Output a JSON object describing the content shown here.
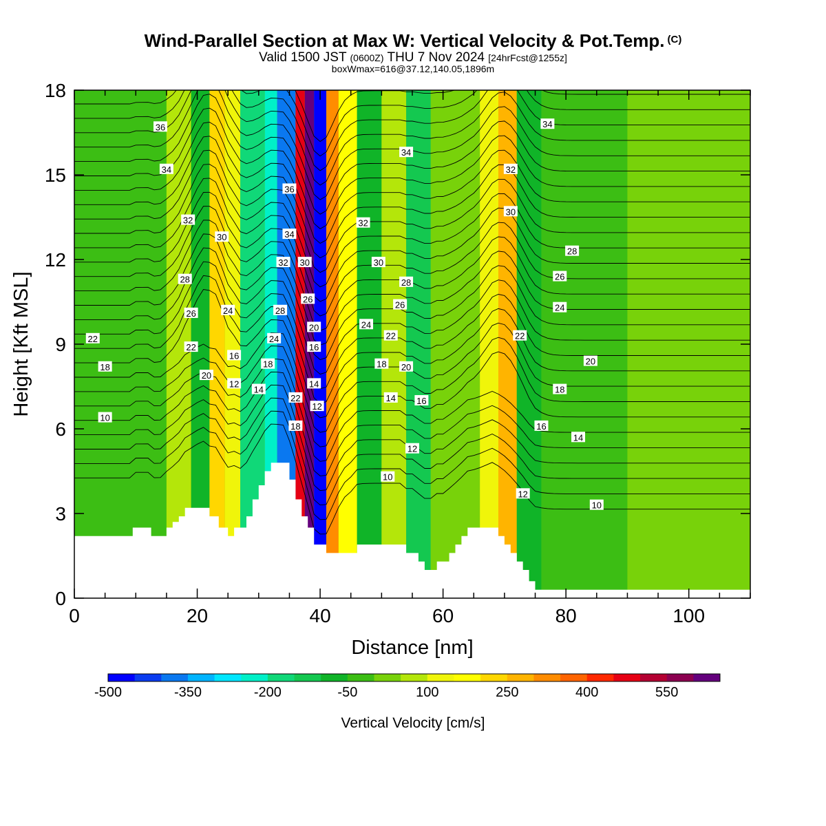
{
  "header": {
    "title": "Wind-Parallel Section at Max W: Vertical Velocity & Pot.Temp.",
    "title_mark": "(C)",
    "valid_prefix": "Valid 1500 JST",
    "valid_utc": "(0600Z)",
    "valid_date": "THU 7 Nov 2024",
    "forecast": "[24hrFcst@1255z]",
    "box_max": "boxWmax=616@37.12,140.05,1896m"
  },
  "chart_data": {
    "type": "heatmap",
    "xlabel": "Distance [nm]",
    "ylabel": "Height [Kft MSL]",
    "xlim": [
      0,
      110
    ],
    "ylim": [
      0,
      18
    ],
    "x_ticks": [
      0,
      20,
      40,
      60,
      80,
      100
    ],
    "y_ticks": [
      0,
      3,
      6,
      9,
      12,
      15,
      18
    ],
    "colorbar": {
      "label": "Vertical Velocity [cm/s]",
      "tick_labels": [
        "-500",
        "-350",
        "-200",
        "-50",
        "100",
        "250",
        "400",
        "550"
      ],
      "tick_values": [
        -500,
        -350,
        -200,
        -50,
        100,
        250,
        400,
        550
      ],
      "bin_edges": [
        -500,
        -450,
        -400,
        -350,
        -300,
        -250,
        -200,
        -150,
        -100,
        -50,
        0,
        50,
        100,
        150,
        200,
        250,
        300,
        350,
        400,
        450,
        500,
        550,
        600,
        650
      ],
      "colors": [
        "#0000ff",
        "#0a3cf0",
        "#0a78f0",
        "#00b4ff",
        "#00e6ff",
        "#00f0c8",
        "#10d878",
        "#14c850",
        "#10b428",
        "#3cbe14",
        "#78d20a",
        "#b4e60a",
        "#f0f50a",
        "#ffff00",
        "#ffd700",
        "#ffb400",
        "#ff8c00",
        "#ff6400",
        "#ff2800",
        "#e60014",
        "#b40032",
        "#8c0050",
        "#64007d"
      ]
    },
    "vertical_velocity_bands": [
      {
        "x_left": 0,
        "x_right": 15,
        "w": -40
      },
      {
        "x_left": 15,
        "x_right": 19,
        "w": 60
      },
      {
        "x_left": 19,
        "x_right": 22,
        "w": -100
      },
      {
        "x_left": 22,
        "x_right": 24.5,
        "w": 230
      },
      {
        "x_left": 24.5,
        "x_right": 27,
        "w": 130
      },
      {
        "x_left": 27,
        "x_right": 31,
        "w": -160
      },
      {
        "x_left": 31,
        "x_right": 33,
        "w": -250
      },
      {
        "x_left": 33,
        "x_right": 36,
        "w": -400
      },
      {
        "x_left": 36,
        "x_right": 37.5,
        "w": 450
      },
      {
        "x_left": 37.5,
        "x_right": 39,
        "w": 600
      },
      {
        "x_left": 39,
        "x_right": 41,
        "w": -480
      },
      {
        "x_left": 41,
        "x_right": 43,
        "w": 330
      },
      {
        "x_left": 43,
        "x_right": 46,
        "w": 170
      },
      {
        "x_left": 46,
        "x_right": 50,
        "w": -60
      },
      {
        "x_left": 50,
        "x_right": 54,
        "w": 80
      },
      {
        "x_left": 54,
        "x_right": 58,
        "w": -110
      },
      {
        "x_left": 58,
        "x_right": 66,
        "w": 30
      },
      {
        "x_left": 66,
        "x_right": 69,
        "w": 110
      },
      {
        "x_left": 69,
        "x_right": 72,
        "w": 260
      },
      {
        "x_left": 72,
        "x_right": 76,
        "w": -80
      },
      {
        "x_left": 76,
        "x_right": 90,
        "w": -30
      },
      {
        "x_left": 90,
        "x_right": 110,
        "w": 20
      }
    ],
    "terrain": [
      [
        0,
        2.2
      ],
      [
        9.5,
        2.2
      ],
      [
        9.5,
        2.5
      ],
      [
        12.5,
        2.5
      ],
      [
        12.5,
        2.2
      ],
      [
        15,
        2.2
      ],
      [
        15,
        2.5
      ],
      [
        16,
        2.5
      ],
      [
        16,
        2.7
      ],
      [
        17,
        2.7
      ],
      [
        17,
        2.9
      ],
      [
        18,
        2.9
      ],
      [
        18,
        3.2
      ],
      [
        22,
        3.2
      ],
      [
        22,
        2.9
      ],
      [
        23.5,
        2.9
      ],
      [
        23.5,
        2.5
      ],
      [
        25,
        2.5
      ],
      [
        25,
        2.2
      ],
      [
        26,
        2.2
      ],
      [
        26,
        2.5
      ],
      [
        28,
        2.5
      ],
      [
        28,
        2.9
      ],
      [
        29,
        2.9
      ],
      [
        29,
        3.5
      ],
      [
        30,
        3.5
      ],
      [
        30,
        4
      ],
      [
        31,
        4
      ],
      [
        31,
        4.5
      ],
      [
        32,
        4.5
      ],
      [
        32,
        4.8
      ],
      [
        35,
        4.8
      ],
      [
        35,
        4.2
      ],
      [
        36,
        4.2
      ],
      [
        36,
        3.5
      ],
      [
        37,
        3.5
      ],
      [
        37,
        2.9
      ],
      [
        38,
        2.9
      ],
      [
        38,
        2.5
      ],
      [
        39,
        2.5
      ],
      [
        39,
        1.9
      ],
      [
        41,
        1.9
      ],
      [
        41,
        1.6
      ],
      [
        46,
        1.6
      ],
      [
        46,
        1.9
      ],
      [
        54,
        1.9
      ],
      [
        54,
        1.6
      ],
      [
        56,
        1.6
      ],
      [
        56,
        1.3
      ],
      [
        57,
        1.3
      ],
      [
        57,
        1
      ],
      [
        59,
        1
      ],
      [
        59,
        1.3
      ],
      [
        61,
        1.3
      ],
      [
        61,
        1.6
      ],
      [
        62,
        1.6
      ],
      [
        62,
        1.9
      ],
      [
        63,
        1.9
      ],
      [
        63,
        2.2
      ],
      [
        64,
        2.2
      ],
      [
        64,
        2.5
      ],
      [
        66,
        2.5
      ],
      [
        66,
        2.5
      ],
      [
        69,
        2.5
      ],
      [
        69,
        2.2
      ],
      [
        70,
        2.2
      ],
      [
        70,
        1.9
      ],
      [
        71,
        1.9
      ],
      [
        71,
        1.6
      ],
      [
        72,
        1.6
      ],
      [
        72,
        1.3
      ],
      [
        73,
        1.3
      ],
      [
        73,
        1
      ],
      [
        74,
        1
      ],
      [
        74,
        0.6
      ],
      [
        75,
        0.6
      ],
      [
        75,
        0.3
      ],
      [
        110,
        0.3
      ]
    ],
    "isentrope_labels": [
      {
        "text": "36",
        "x": 14,
        "y": 16.7
      },
      {
        "text": "34",
        "x": 15,
        "y": 15.2
      },
      {
        "text": "32",
        "x": 18.5,
        "y": 13.4
      },
      {
        "text": "30",
        "x": 24,
        "y": 12.8
      },
      {
        "text": "28",
        "x": 18,
        "y": 11.3
      },
      {
        "text": "24",
        "x": 25,
        "y": 10.2
      },
      {
        "text": "26",
        "x": 19,
        "y": 10.1
      },
      {
        "text": "22",
        "x": 3,
        "y": 9.2
      },
      {
        "text": "22",
        "x": 19,
        "y": 8.9
      },
      {
        "text": "16",
        "x": 26,
        "y": 8.6
      },
      {
        "text": "18",
        "x": 5,
        "y": 8.2
      },
      {
        "text": "20",
        "x": 21.5,
        "y": 7.9
      },
      {
        "text": "12",
        "x": 26,
        "y": 7.6
      },
      {
        "text": "14",
        "x": 30,
        "y": 7.4
      },
      {
        "text": "10",
        "x": 5,
        "y": 6.4
      },
      {
        "text": "36",
        "x": 35,
        "y": 14.5
      },
      {
        "text": "34",
        "x": 35,
        "y": 12.9
      },
      {
        "text": "32",
        "x": 34,
        "y": 11.9
      },
      {
        "text": "30",
        "x": 37.5,
        "y": 11.9
      },
      {
        "text": "28",
        "x": 33.5,
        "y": 10.2
      },
      {
        "text": "26",
        "x": 38,
        "y": 10.6
      },
      {
        "text": "24",
        "x": 32.5,
        "y": 9.2
      },
      {
        "text": "20",
        "x": 39,
        "y": 9.6
      },
      {
        "text": "18",
        "x": 31.5,
        "y": 8.3
      },
      {
        "text": "16",
        "x": 39,
        "y": 8.9
      },
      {
        "text": "14",
        "x": 39,
        "y": 7.6
      },
      {
        "text": "22",
        "x": 36,
        "y": 7.1
      },
      {
        "text": "12",
        "x": 39.5,
        "y": 6.8
      },
      {
        "text": "18",
        "x": 36,
        "y": 6.1
      },
      {
        "text": "32",
        "x": 47,
        "y": 13.3
      },
      {
        "text": "30",
        "x": 49.5,
        "y": 11.9
      },
      {
        "text": "28",
        "x": 54,
        "y": 11.2
      },
      {
        "text": "26",
        "x": 53,
        "y": 10.4
      },
      {
        "text": "24",
        "x": 47.5,
        "y": 9.7
      },
      {
        "text": "22",
        "x": 51.5,
        "y": 9.3
      },
      {
        "text": "18",
        "x": 50,
        "y": 8.3
      },
      {
        "text": "20",
        "x": 54,
        "y": 8.2
      },
      {
        "text": "14",
        "x": 51.5,
        "y": 7.1
      },
      {
        "text": "16",
        "x": 56.5,
        "y": 7.0
      },
      {
        "text": "12",
        "x": 55,
        "y": 5.3
      },
      {
        "text": "10",
        "x": 51,
        "y": 4.3
      },
      {
        "text": "34",
        "x": 54,
        "y": 15.8
      },
      {
        "text": "34",
        "x": 77,
        "y": 16.8
      },
      {
        "text": "32",
        "x": 71,
        "y": 15.2
      },
      {
        "text": "30",
        "x": 71,
        "y": 13.7
      },
      {
        "text": "28",
        "x": 81,
        "y": 12.3
      },
      {
        "text": "26",
        "x": 79,
        "y": 11.4
      },
      {
        "text": "24",
        "x": 79,
        "y": 10.3
      },
      {
        "text": "22",
        "x": 72.5,
        "y": 9.3
      },
      {
        "text": "20",
        "x": 84,
        "y": 8.4
      },
      {
        "text": "18",
        "x": 79,
        "y": 7.4
      },
      {
        "text": "16",
        "x": 76,
        "y": 6.1
      },
      {
        "text": "14",
        "x": 82,
        "y": 5.7
      },
      {
        "text": "12",
        "x": 73,
        "y": 3.7
      },
      {
        "text": "10",
        "x": 85,
        "y": 3.3
      }
    ]
  }
}
